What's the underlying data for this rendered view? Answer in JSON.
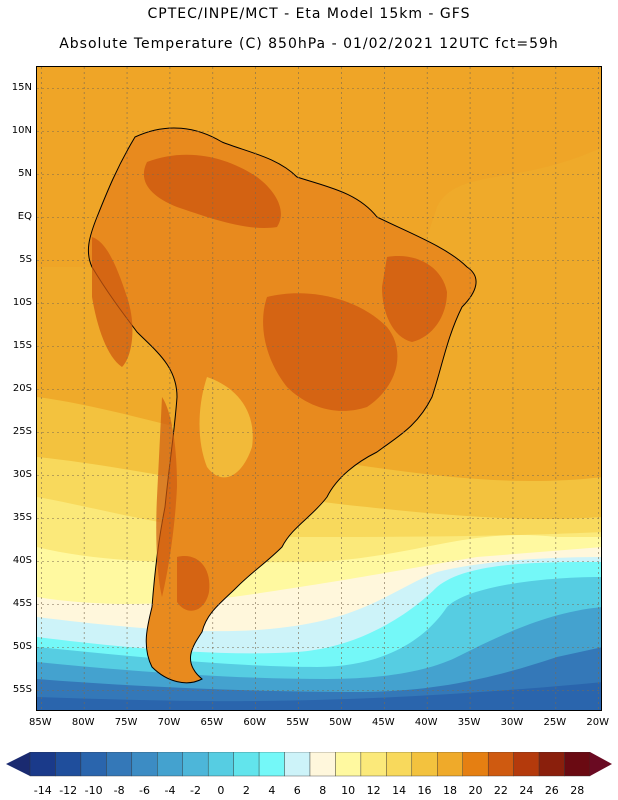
{
  "title": {
    "line1": "CPTEC/INPE/MCT -  Eta Model 15km - GFS",
    "line2": "Absolute Temperature (C) 850hPa - 01/02/2021 12UTC fct=59h"
  },
  "map": {
    "lat_labels": [
      "15N",
      "10N",
      "5N",
      "EQ",
      "5S",
      "10S",
      "15S",
      "20S",
      "25S",
      "30S",
      "35S",
      "40S",
      "45S",
      "50S",
      "55S"
    ],
    "lat_values": [
      15,
      10,
      5,
      0,
      -5,
      -10,
      -15,
      -20,
      -25,
      -30,
      -35,
      -40,
      -45,
      -50,
      -55
    ],
    "lon_labels": [
      "85W",
      "80W",
      "75W",
      "70W",
      "65W",
      "60W",
      "55W",
      "50W",
      "45W",
      "40W",
      "35W",
      "30W",
      "25W",
      "20W"
    ],
    "lon_values": [
      -85,
      -80,
      -75,
      -70,
      -65,
      -60,
      -55,
      -50,
      -45,
      -40,
      -35,
      -30,
      -25,
      -20
    ],
    "lat_range": [
      -57.5,
      17.5
    ],
    "lon_range": [
      -85.5,
      -19.5
    ],
    "background_color": "#efaa2a"
  },
  "colorbar": {
    "labels": [
      "-14",
      "-12",
      "-10",
      "-8",
      "-6",
      "-4",
      "-2",
      "0",
      "2",
      "4",
      "6",
      "8",
      "10",
      "12",
      "14",
      "16",
      "18",
      "20",
      "22",
      "24",
      "26",
      "28"
    ],
    "colors": [
      "#1a3a8a",
      "#1f4e9c",
      "#2a65ad",
      "#3478b8",
      "#3c8cc4",
      "#44a2cf",
      "#4db6d9",
      "#56cde2",
      "#62e4ec",
      "#74f8f8",
      "#cdf3f9",
      "#fff7dc",
      "#fff9a0",
      "#fbe97a",
      "#f8d95c",
      "#f3c23e",
      "#efaa2a",
      "#e57f12",
      "#cf5a10",
      "#b43a0c",
      "#8a1f0c",
      "#6a0a12"
    ],
    "low_end_color": "#1a2a70",
    "high_end_color": "#6a0a22"
  }
}
